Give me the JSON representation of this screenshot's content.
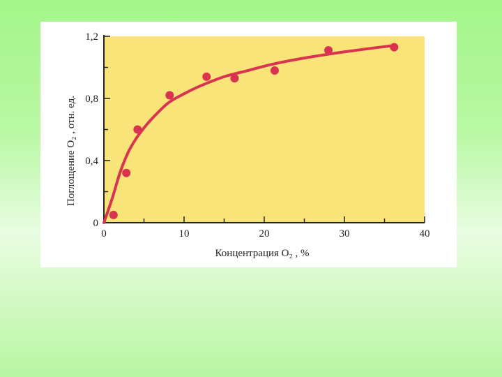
{
  "chart_data": {
    "type": "scatter",
    "title": "",
    "xlabel": "Концентрация  O₂ , %",
    "ylabel": "Поглощение O₂ , отн. ед.",
    "xlim": [
      0,
      40
    ],
    "ylim": [
      0,
      1.2
    ],
    "x_ticks": [
      0,
      10,
      20,
      30,
      40
    ],
    "x_tick_labels": [
      "0",
      "10",
      "20",
      "30",
      "40"
    ],
    "y_ticks": [
      0,
      0.4,
      0.8,
      1.2
    ],
    "y_tick_labels": [
      "0",
      "0,4",
      "0,8",
      "1,2"
    ],
    "grid": false,
    "series": [
      {
        "kind": "points",
        "x": [
          1.2,
          2.8,
          4.2,
          8.2,
          12.8,
          16.3,
          21.3,
          28.0,
          36.2
        ],
        "y": [
          0.05,
          0.32,
          0.6,
          0.82,
          0.94,
          0.93,
          0.98,
          1.11,
          1.13
        ]
      },
      {
        "kind": "fit-curve",
        "x": [
          0,
          1,
          2,
          3,
          4,
          5,
          6,
          8,
          10,
          12,
          15,
          18,
          21,
          25,
          30,
          36
        ],
        "y": [
          0,
          0.15,
          0.32,
          0.45,
          0.54,
          0.61,
          0.67,
          0.77,
          0.83,
          0.88,
          0.94,
          0.98,
          1.02,
          1.06,
          1.1,
          1.14
        ]
      }
    ],
    "colors": {
      "plot_background": "#f9e479",
      "marker": "#d8334f",
      "line": "#d8334f",
      "axis": "#222222"
    }
  }
}
